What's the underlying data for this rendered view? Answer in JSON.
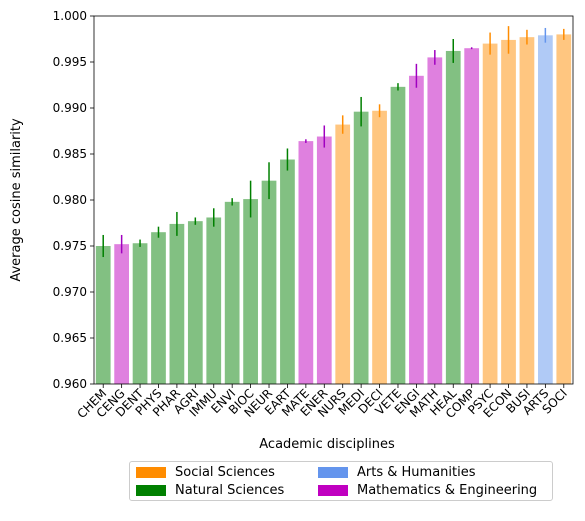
{
  "chart_data": {
    "type": "bar",
    "xlabel": "Academic disciplines",
    "ylabel": "Average cosine similarity",
    "ylim": [
      0.96,
      1.0
    ],
    "yticks": [
      "0.960",
      "0.965",
      "0.970",
      "0.975",
      "0.980",
      "0.985",
      "0.990",
      "0.995",
      "1.000"
    ],
    "grid": false,
    "legend_placement": "bottom-center",
    "categories": [
      "CHEM",
      "CENG",
      "DENT",
      "PHYS",
      "PHAR",
      "AGRI",
      "IMMU",
      "ENVI",
      "BIOC",
      "NEUR",
      "EART",
      "MATE",
      "ENER",
      "NURS",
      "MEDI",
      "DECI",
      "VETE",
      "ENGI",
      "MATH",
      "HEAL",
      "COMP",
      "PSYC",
      "ECON",
      "BUSI",
      "ARTS",
      "SOCI"
    ],
    "values": [
      0.975,
      0.9752,
      0.9753,
      0.9765,
      0.9774,
      0.9777,
      0.9781,
      0.9798,
      0.9801,
      0.9821,
      0.9844,
      0.9864,
      0.9869,
      0.9882,
      0.9896,
      0.9897,
      0.9923,
      0.9935,
      0.9955,
      0.9962,
      0.9965,
      0.997,
      0.9974,
      0.9977,
      0.9979,
      0.998
    ],
    "errors": [
      0.0012,
      0.001,
      0.0004,
      0.0006,
      0.0013,
      0.0004,
      0.001,
      0.0004,
      0.002,
      0.002,
      0.0012,
      0.0002,
      0.0012,
      0.001,
      0.0016,
      0.0007,
      0.0004,
      0.0013,
      0.0008,
      0.0013,
      0.0001,
      0.0012,
      0.0015,
      0.0008,
      0.0008,
      0.0006
    ],
    "groups": [
      "Natural Sciences",
      "Mathematics & Engineering",
      "Natural Sciences",
      "Natural Sciences",
      "Natural Sciences",
      "Natural Sciences",
      "Natural Sciences",
      "Natural Sciences",
      "Natural Sciences",
      "Natural Sciences",
      "Natural Sciences",
      "Mathematics & Engineering",
      "Mathematics & Engineering",
      "Social Sciences",
      "Natural Sciences",
      "Social Sciences",
      "Natural Sciences",
      "Mathematics & Engineering",
      "Mathematics & Engineering",
      "Natural Sciences",
      "Mathematics & Engineering",
      "Social Sciences",
      "Social Sciences",
      "Social Sciences",
      "Arts & Humanities",
      "Social Sciences"
    ],
    "legend": [
      {
        "name": "Social Sciences",
        "color": "#ff8c00"
      },
      {
        "name": "Natural Sciences",
        "color": "#008000"
      },
      {
        "name": "Arts & Humanities",
        "color": "#6495ed"
      },
      {
        "name": "Mathematics & Engineering",
        "color": "#c000c0"
      }
    ],
    "group_colors": {
      "Social Sciences": {
        "bar": "#ffc680",
        "err": "#ff8c00"
      },
      "Natural Sciences": {
        "bar": "#82c082",
        "err": "#008000"
      },
      "Arts & Humanities": {
        "bar": "#b0caf6",
        "err": "#6495ed"
      },
      "Mathematics & Engineering": {
        "bar": "#df80df",
        "err": "#a000c0"
      }
    }
  }
}
